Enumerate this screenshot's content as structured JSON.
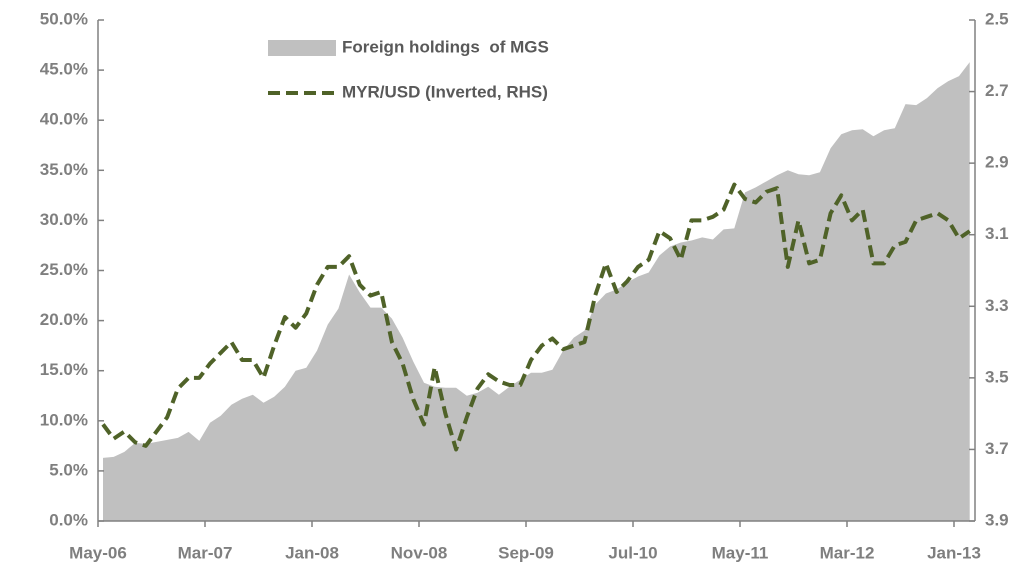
{
  "chart_data": {
    "type": "combo",
    "categories": [
      "May-06",
      null,
      null,
      null,
      null,
      null,
      null,
      null,
      null,
      null,
      "Mar-07",
      null,
      null,
      null,
      null,
      null,
      null,
      null,
      null,
      null,
      "Jan-08",
      null,
      null,
      null,
      null,
      null,
      null,
      null,
      null,
      null,
      "Nov-08",
      null,
      null,
      null,
      null,
      null,
      null,
      null,
      null,
      null,
      "Sep-09",
      null,
      null,
      null,
      null,
      null,
      null,
      null,
      null,
      null,
      "Jul-10",
      null,
      null,
      null,
      null,
      null,
      null,
      null,
      null,
      null,
      "May-11",
      null,
      null,
      null,
      null,
      null,
      null,
      null,
      null,
      null,
      "Mar-12",
      null,
      null,
      null,
      null,
      null,
      null,
      null,
      null,
      null,
      "Jan-13",
      null
    ],
    "series": [
      {
        "name": "Foreign holdings  of MGS",
        "type": "area",
        "color": "#c0c0c0",
        "axis": "y",
        "values": [
          6.3,
          6.4,
          6.9,
          7.8,
          7.7,
          7.9,
          8.1,
          8.3,
          8.9,
          8.0,
          9.8,
          10.5,
          11.6,
          12.2,
          12.6,
          11.8,
          12.4,
          13.4,
          15.0,
          15.3,
          17.0,
          19.6,
          21.2,
          24.6,
          22.8,
          21.3,
          21.3,
          20.2,
          18.3,
          15.9,
          13.8,
          13.4,
          13.3,
          13.3,
          12.5,
          12.8,
          13.4,
          12.6,
          13.4,
          14.1,
          14.8,
          14.8,
          15.1,
          17.0,
          18.3,
          19.0,
          21.6,
          22.7,
          23.1,
          23.8,
          24.4,
          24.8,
          26.5,
          27.4,
          27.8,
          28.0,
          28.3,
          28.1,
          29.1,
          29.2,
          32.8,
          33.3,
          33.9,
          34.5,
          35.0,
          34.6,
          34.5,
          34.8,
          37.2,
          38.6,
          39.0,
          39.1,
          38.4,
          39.0,
          39.2,
          41.6,
          41.5,
          42.2,
          43.2,
          43.9,
          44.4,
          45.8
        ]
      },
      {
        "name": "MYR/USD (Inverted, RHS)",
        "type": "line",
        "color": "#4f6228",
        "dashed": true,
        "axis": "y2",
        "values": [
          3.63,
          3.67,
          3.65,
          3.68,
          3.69,
          3.65,
          3.61,
          3.53,
          3.5,
          3.5,
          3.46,
          3.43,
          3.4,
          3.45,
          3.45,
          3.5,
          3.41,
          3.33,
          3.36,
          3.32,
          3.24,
          3.19,
          3.19,
          3.16,
          3.24,
          3.27,
          3.26,
          3.4,
          3.46,
          3.56,
          3.63,
          3.47,
          3.6,
          3.7,
          3.61,
          3.53,
          3.49,
          3.51,
          3.52,
          3.52,
          3.45,
          3.41,
          3.39,
          3.42,
          3.41,
          3.4,
          3.27,
          3.18,
          3.26,
          3.23,
          3.19,
          3.17,
          3.09,
          3.11,
          3.17,
          3.06,
          3.06,
          3.05,
          3.03,
          2.96,
          3.0,
          3.01,
          2.98,
          2.97,
          3.19,
          3.06,
          3.18,
          3.17,
          3.04,
          2.99,
          3.06,
          3.03,
          3.18,
          3.18,
          3.13,
          3.12,
          3.06,
          3.05,
          3.04,
          3.06,
          3.11,
          3.09
        ]
      }
    ],
    "ylim": [
      0,
      50
    ],
    "yticks": [
      {
        "value": 0,
        "label": "0.0%"
      },
      {
        "value": 5,
        "label": "5.0%"
      },
      {
        "value": 10,
        "label": "10.0%"
      },
      {
        "value": 15,
        "label": "15.0%"
      },
      {
        "value": 20,
        "label": "20.0%"
      },
      {
        "value": 25,
        "label": "25.0%"
      },
      {
        "value": 30,
        "label": "30.0%"
      },
      {
        "value": 35,
        "label": "35.0%"
      },
      {
        "value": 40,
        "label": "40.0%"
      },
      {
        "value": 45,
        "label": "45.0%"
      },
      {
        "value": 50,
        "label": "50.0%"
      }
    ],
    "y2lim": [
      2.5,
      3.9
    ],
    "y2_inverted": true,
    "y2ticks": [
      2.5,
      2.7,
      2.9,
      3.1,
      3.3,
      3.5,
      3.7,
      3.9
    ],
    "grid": false,
    "legend": "top-left"
  }
}
